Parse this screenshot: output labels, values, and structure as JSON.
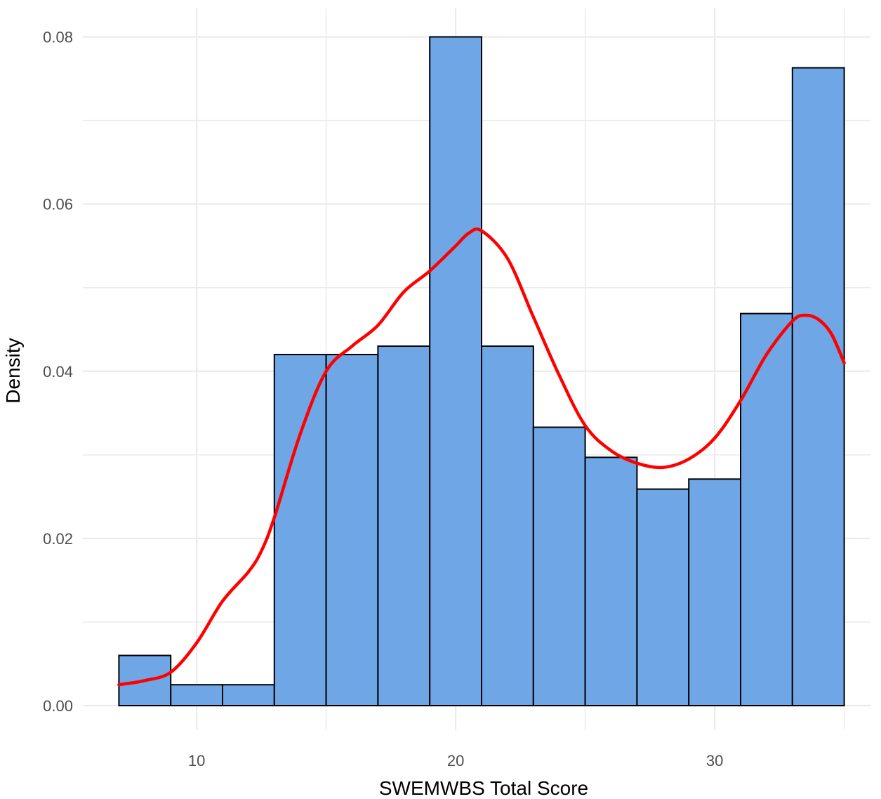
{
  "chart_data": {
    "type": "bar",
    "subtype": "histogram-with-density",
    "title": "",
    "xlabel": "SWEMWBS Total Score",
    "ylabel": "Density",
    "xlim": [
      6,
      36
    ],
    "ylim": [
      0,
      0.08
    ],
    "x_ticks": [
      10,
      20,
      30
    ],
    "x_tick_labels": [
      "10",
      "20",
      "30"
    ],
    "y_ticks": [
      0,
      0.02,
      0.04,
      0.06,
      0.08
    ],
    "y_tick_labels": [
      "0.00",
      "0.02",
      "0.04",
      "0.06",
      "0.08"
    ],
    "grid": true,
    "legend": "none",
    "bins": [
      {
        "x0": 7,
        "x1": 9,
        "density": 0.006
      },
      {
        "x0": 9,
        "x1": 11,
        "density": 0.0025
      },
      {
        "x0": 11,
        "x1": 13,
        "density": 0.0025
      },
      {
        "x0": 13,
        "x1": 15,
        "density": 0.042
      },
      {
        "x0": 15,
        "x1": 17,
        "density": 0.042
      },
      {
        "x0": 17,
        "x1": 19,
        "density": 0.043
      },
      {
        "x0": 19,
        "x1": 21,
        "density": 0.08
      },
      {
        "x0": 21,
        "x1": 23,
        "density": 0.043
      },
      {
        "x0": 23,
        "x1": 25,
        "density": 0.0333
      },
      {
        "x0": 25,
        "x1": 27,
        "density": 0.0297
      },
      {
        "x0": 27,
        "x1": 29,
        "density": 0.0259
      },
      {
        "x0": 29,
        "x1": 31,
        "density": 0.0271
      },
      {
        "x0": 31,
        "x1": 33,
        "density": 0.0469
      },
      {
        "x0": 33,
        "x1": 35,
        "density": 0.0763
      }
    ],
    "density_curve": {
      "x": [
        7,
        8,
        9,
        10,
        11,
        12,
        12.5,
        13,
        14,
        15,
        16,
        17,
        18,
        19,
        20,
        20.5,
        21,
        22,
        23,
        24,
        25,
        26,
        27,
        28,
        29,
        30,
        31,
        32,
        33,
        33.5,
        34,
        34.5,
        35
      ],
      "y": [
        0.0025,
        0.003,
        0.004,
        0.0075,
        0.0125,
        0.016,
        0.0185,
        0.0225,
        0.0325,
        0.04,
        0.043,
        0.0455,
        0.0495,
        0.052,
        0.055,
        0.0565,
        0.0568,
        0.0535,
        0.0465,
        0.0395,
        0.0335,
        0.0305,
        0.029,
        0.0285,
        0.0295,
        0.032,
        0.0365,
        0.042,
        0.046,
        0.0467,
        0.0462,
        0.0445,
        0.041
      ]
    },
    "colors": {
      "bar_fill": "#6fa6e6",
      "bar_stroke": "#000000",
      "curve": "#ff0000",
      "grid": "#ebebeb"
    }
  }
}
